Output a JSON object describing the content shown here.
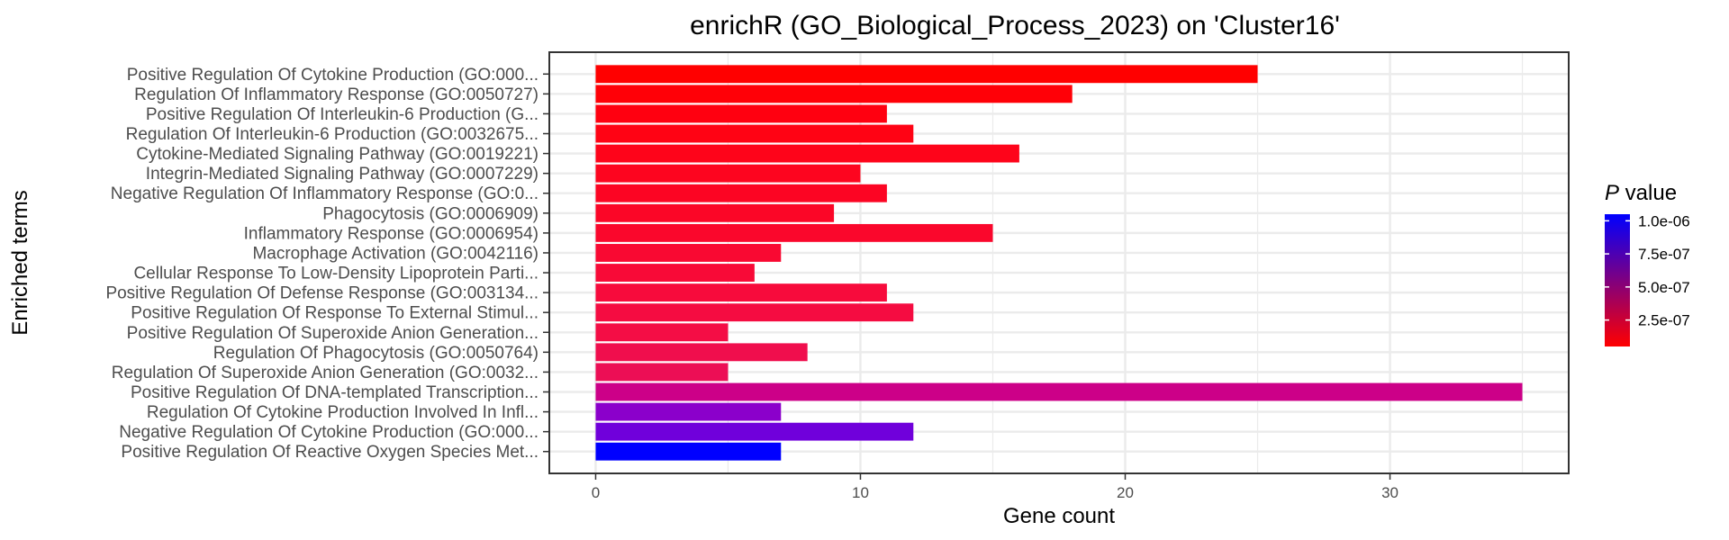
{
  "chart_data": {
    "type": "bar",
    "orientation": "horizontal",
    "title": "enrichR (GO_Biological_Process_2023) on 'Cluster16'",
    "xlabel": "Gene count",
    "ylabel": "Enriched terms",
    "xlim": [
      -1.75,
      36.75
    ],
    "xticks": [
      0,
      10,
      20,
      30
    ],
    "xtick_labels": [
      "0",
      "10",
      "20",
      "30"
    ],
    "grid": true,
    "legend": {
      "title_italic": "P",
      "title_rest": " value",
      "position": "right",
      "type": "colorbar",
      "low_color": "#ff0000",
      "high_color": "#0000ff",
      "range": [
        5e-08,
        1.05e-06
      ],
      "ticks": [
        1e-06,
        7.5e-07,
        5e-07,
        2.5e-07
      ],
      "tick_labels": [
        "1.0e-06",
        "7.5e-07",
        "5.0e-07",
        "2.5e-07"
      ]
    },
    "categories": [
      "Positive Regulation Of Cytokine Production (GO:000...",
      "Regulation Of Inflammatory Response (GO:0050727)",
      "Positive Regulation Of Interleukin-6 Production (G...",
      "Regulation Of Interleukin-6 Production (GO:0032675...",
      "Cytokine-Mediated Signaling Pathway (GO:0019221)",
      "Integrin-Mediated Signaling Pathway (GO:0007229)",
      "Negative Regulation Of Inflammatory Response (GO:0...",
      "Phagocytosis (GO:0006909)",
      "Inflammatory Response (GO:0006954)",
      "Macrophage Activation (GO:0042116)",
      "Cellular Response To Low-Density Lipoprotein Parti...",
      "Positive Regulation Of Defense Response (GO:003134...",
      "Positive Regulation Of Response To External Stimul...",
      "Positive Regulation Of Superoxide Anion Generation...",
      "Regulation Of Phagocytosis (GO:0050764)",
      "Regulation Of Superoxide Anion Generation (GO:0032...",
      "Positive Regulation Of DNA-templated Transcription...",
      "Regulation Of Cytokine Production Involved In Infl...",
      "Negative Regulation Of Cytokine Production (GO:000...",
      "Positive Regulation Of Reactive Oxygen Species Met..."
    ],
    "values": [
      25,
      18,
      11,
      12,
      16,
      10,
      11,
      9,
      15,
      7,
      6,
      11,
      12,
      5,
      8,
      5,
      35,
      7,
      12,
      7
    ],
    "colors": [
      "#ff0000",
      "#ff0007",
      "#ff0010",
      "#ff0314",
      "#fe041a",
      "#fd051f",
      "#fc0523",
      "#fb0627",
      "#fa072c",
      "#f90932",
      "#f80a37",
      "#f70b3c",
      "#f50c41",
      "#f40d45",
      "#f00e4d",
      "#ec0e55",
      "#cc0088",
      "#8b00cb",
      "#7000db",
      "#0000ff"
    ]
  }
}
